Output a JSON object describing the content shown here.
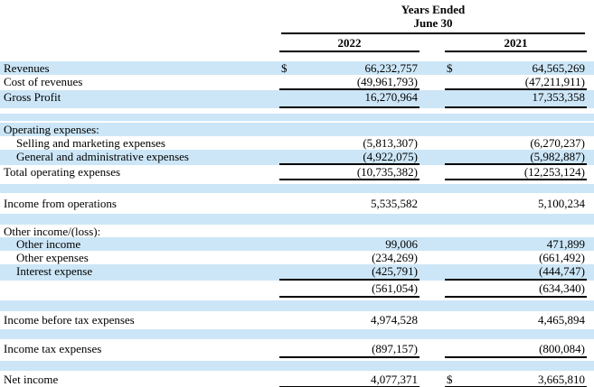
{
  "document": {
    "kind": "income-statement-table",
    "colors": {
      "stripe": "#cce6f7",
      "rule": "#000000",
      "text": "#000000",
      "background": "#ffffff"
    }
  },
  "header": {
    "title_line1": "Years Ended",
    "title_line2": "June 30",
    "year_col1": "2022",
    "year_col2": "2021"
  },
  "table": {
    "currency": "$",
    "columns": [
      "2022",
      "2021"
    ],
    "rows": [
      {
        "label": "Revenues",
        "bg": "blue",
        "h": 15,
        "d1": true,
        "v1": "66,232,757",
        "d2": true,
        "v2": "64,565,269"
      },
      {
        "label": "Cost of revenues",
        "bg": "white",
        "h": 17,
        "v1": "(49,961,793)",
        "v2": "(47,211,911)",
        "ul": true
      },
      {
        "label": "Gross Profit",
        "bg": "blue",
        "h": 20,
        "v1": "16,270,964",
        "v2": "17,353,358",
        "ul": true
      },
      {
        "bg": "white",
        "h": 6
      },
      {
        "bg": "blue",
        "h": 8
      },
      {
        "bg": "white",
        "h": 2
      },
      {
        "label": "Operating expenses:",
        "bg": "blue",
        "h": 15
      },
      {
        "label": "Selling and marketing expenses",
        "indent": true,
        "bg": "white",
        "h": 15,
        "v1": "(5,813,307)",
        "v2": "(6,270,237)"
      },
      {
        "label": "General and administrative expenses",
        "indent": true,
        "bg": "blue",
        "h": 17,
        "v1": "(4,922,075)",
        "v2": "(5,982,887)",
        "ul": true
      },
      {
        "label": "Total operating expenses",
        "bg": "white",
        "h": 17,
        "v1": "(10,735,382)",
        "v2": "(12,253,124)",
        "ul": true
      },
      {
        "bg": "white",
        "h": 4
      },
      {
        "bg": "blue",
        "h": 10
      },
      {
        "bg": "white",
        "h": 4
      },
      {
        "label": "Income from operations",
        "bg": "white",
        "h": 15,
        "v1": "5,535,582",
        "v2": "5,100,234"
      },
      {
        "bg": "white",
        "h": 4
      },
      {
        "bg": "blue",
        "h": 12
      },
      {
        "label": "Other income/(loss):",
        "bg": "white",
        "h": 14
      },
      {
        "label": "Other income",
        "indent": true,
        "bg": "blue",
        "h": 15,
        "v1": "99,006",
        "v2": "471,899"
      },
      {
        "label": "Other expenses",
        "indent": true,
        "bg": "white",
        "h": 15,
        "v1": "(234,269)",
        "v2": "(661,492)"
      },
      {
        "label": "Interest expense",
        "indent": true,
        "bg": "blue",
        "h": 18,
        "v1": "(425,791)",
        "v2": "(444,747)",
        "ul": true
      },
      {
        "bg": "white",
        "h": 1
      },
      {
        "label": "",
        "bg": "white",
        "h": 18,
        "v1": "(561,054)",
        "v2": "(634,340)",
        "ul": true
      },
      {
        "bg": "white",
        "h": 3
      },
      {
        "bg": "blue",
        "h": 12
      },
      {
        "bg": "white",
        "h": 2
      },
      {
        "label": "Income before tax expenses",
        "bg": "white",
        "h": 15,
        "v1": "4,974,528",
        "v2": "4,465,894"
      },
      {
        "bg": "white",
        "h": 3
      },
      {
        "bg": "blue",
        "h": 11
      },
      {
        "bg": "white",
        "h": 3
      },
      {
        "label": "Income tax expenses",
        "bg": "white",
        "h": 18,
        "v1": "(897,157)",
        "v2": "(800,084)",
        "ul": true
      },
      {
        "bg": "white",
        "h": 3
      },
      {
        "bg": "blue",
        "h": 11
      },
      {
        "bg": "white",
        "h": 2
      },
      {
        "label": "Net income",
        "bg": "white",
        "h": 18,
        "v1": "4,077,371",
        "d2": true,
        "v2": "3,665,810",
        "dul": true
      }
    ]
  }
}
